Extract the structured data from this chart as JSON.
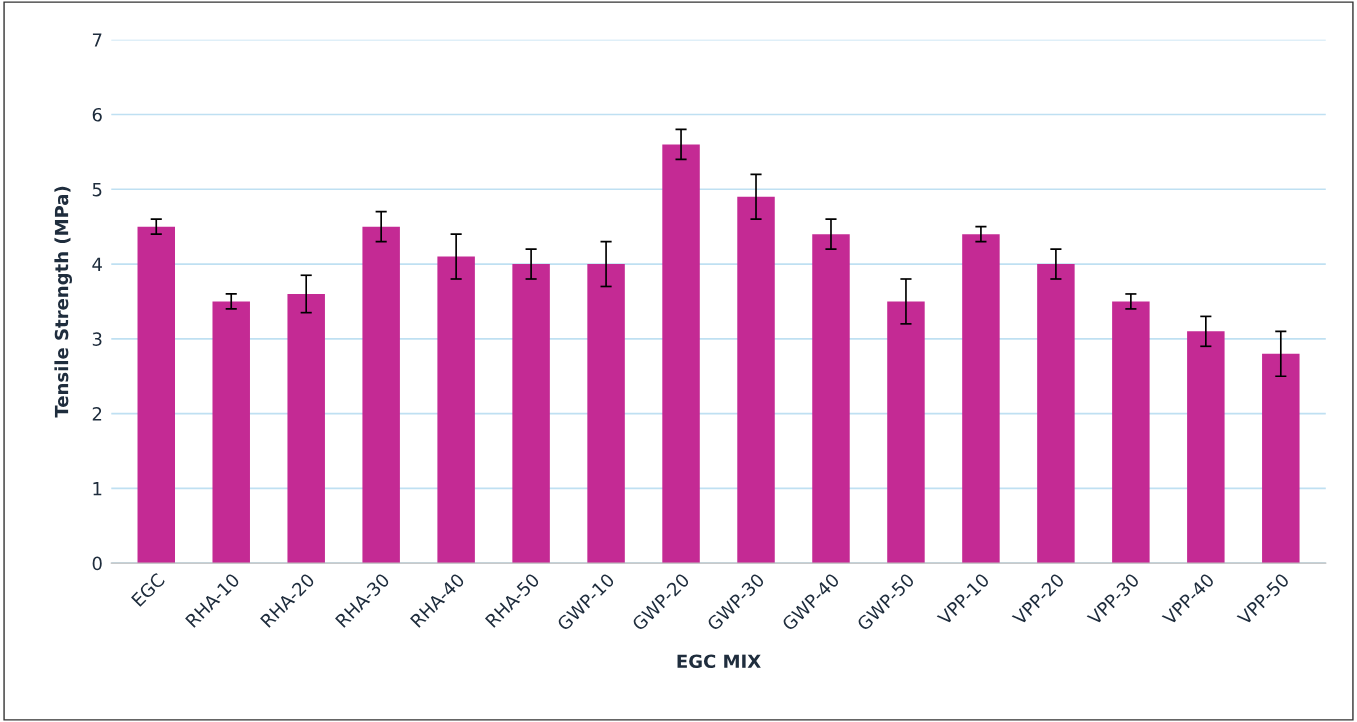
{
  "chart_data": {
    "type": "bar",
    "xlabel": "EGC MIX",
    "ylabel": "Tensile Strength (MPa)",
    "categories": [
      "EGC",
      "RHA-10",
      "RHA-20",
      "RHA-30",
      "RHA-40",
      "RHA-50",
      "GWP-10",
      "GWP-20",
      "GWP-30",
      "GWP-40",
      "GWP-50",
      "VPP-10",
      "VPP-20",
      "VPP-30",
      "VPP-40",
      "VPP-50"
    ],
    "values": [
      4.5,
      3.5,
      3.6,
      4.5,
      4.1,
      4.0,
      4.0,
      5.6,
      4.9,
      4.4,
      3.5,
      4.4,
      4.0,
      3.5,
      3.1,
      2.8
    ],
    "errors": [
      0.1,
      0.1,
      0.25,
      0.2,
      0.3,
      0.2,
      0.3,
      0.2,
      0.3,
      0.2,
      0.3,
      0.1,
      0.2,
      0.1,
      0.2,
      0.3
    ],
    "color": "#c42a94",
    "ylim": [
      0,
      7
    ],
    "yticks": [
      0,
      1,
      2,
      3,
      4,
      5,
      6,
      7
    ],
    "grid": "y",
    "legend": false
  }
}
